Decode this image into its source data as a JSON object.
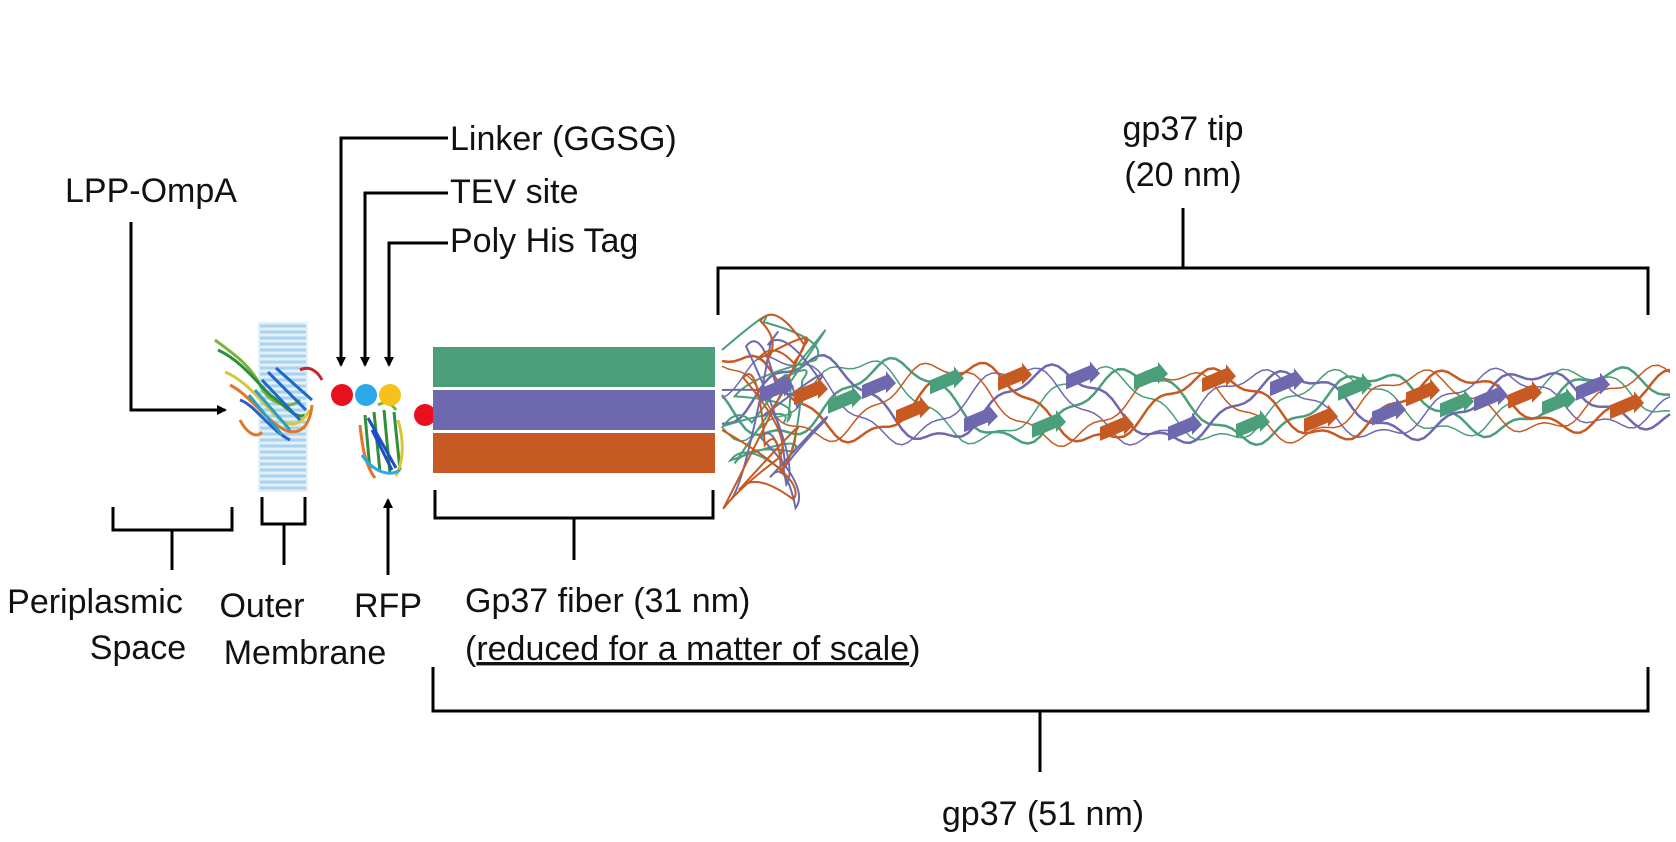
{
  "colors": {
    "fiber_green": "#4A9E7A",
    "fiber_purple": "#6E69AE",
    "fiber_orange": "#C65A22",
    "linker_red": "#E8101E",
    "tev_blue": "#2BA8E8",
    "his_yellow": "#F6C21A",
    "membrane_blue": "#A9D2EE"
  },
  "labels": {
    "lpp_ompa": "LPP-OmpA",
    "linker": "Linker (GGSG)",
    "tev": "TEV site",
    "his": "Poly His Tag",
    "tip_line1": "gp37 tip",
    "tip_line2": "(20 nm)",
    "periplasmic_line1": "Periplasmic",
    "periplasmic_line2": "Space",
    "outer_line1": "Outer",
    "outer_line2": "Membrane",
    "rfp": "RFP",
    "fiber_line1": "Gp37 fiber (31 nm)",
    "fiber_line2_open": "(",
    "fiber_line2_underlined": "reduced for a matter of scale",
    "fiber_line2_close": ")",
    "gp37_total": "gp37 (51 nm)"
  },
  "icons": {
    "lpp_structure": "protein-ribbon-icon",
    "membrane": "lipid-bilayer-icon",
    "rfp_structure": "beta-barrel-icon",
    "tip_structure": "triple-helix-fiber-icon"
  }
}
